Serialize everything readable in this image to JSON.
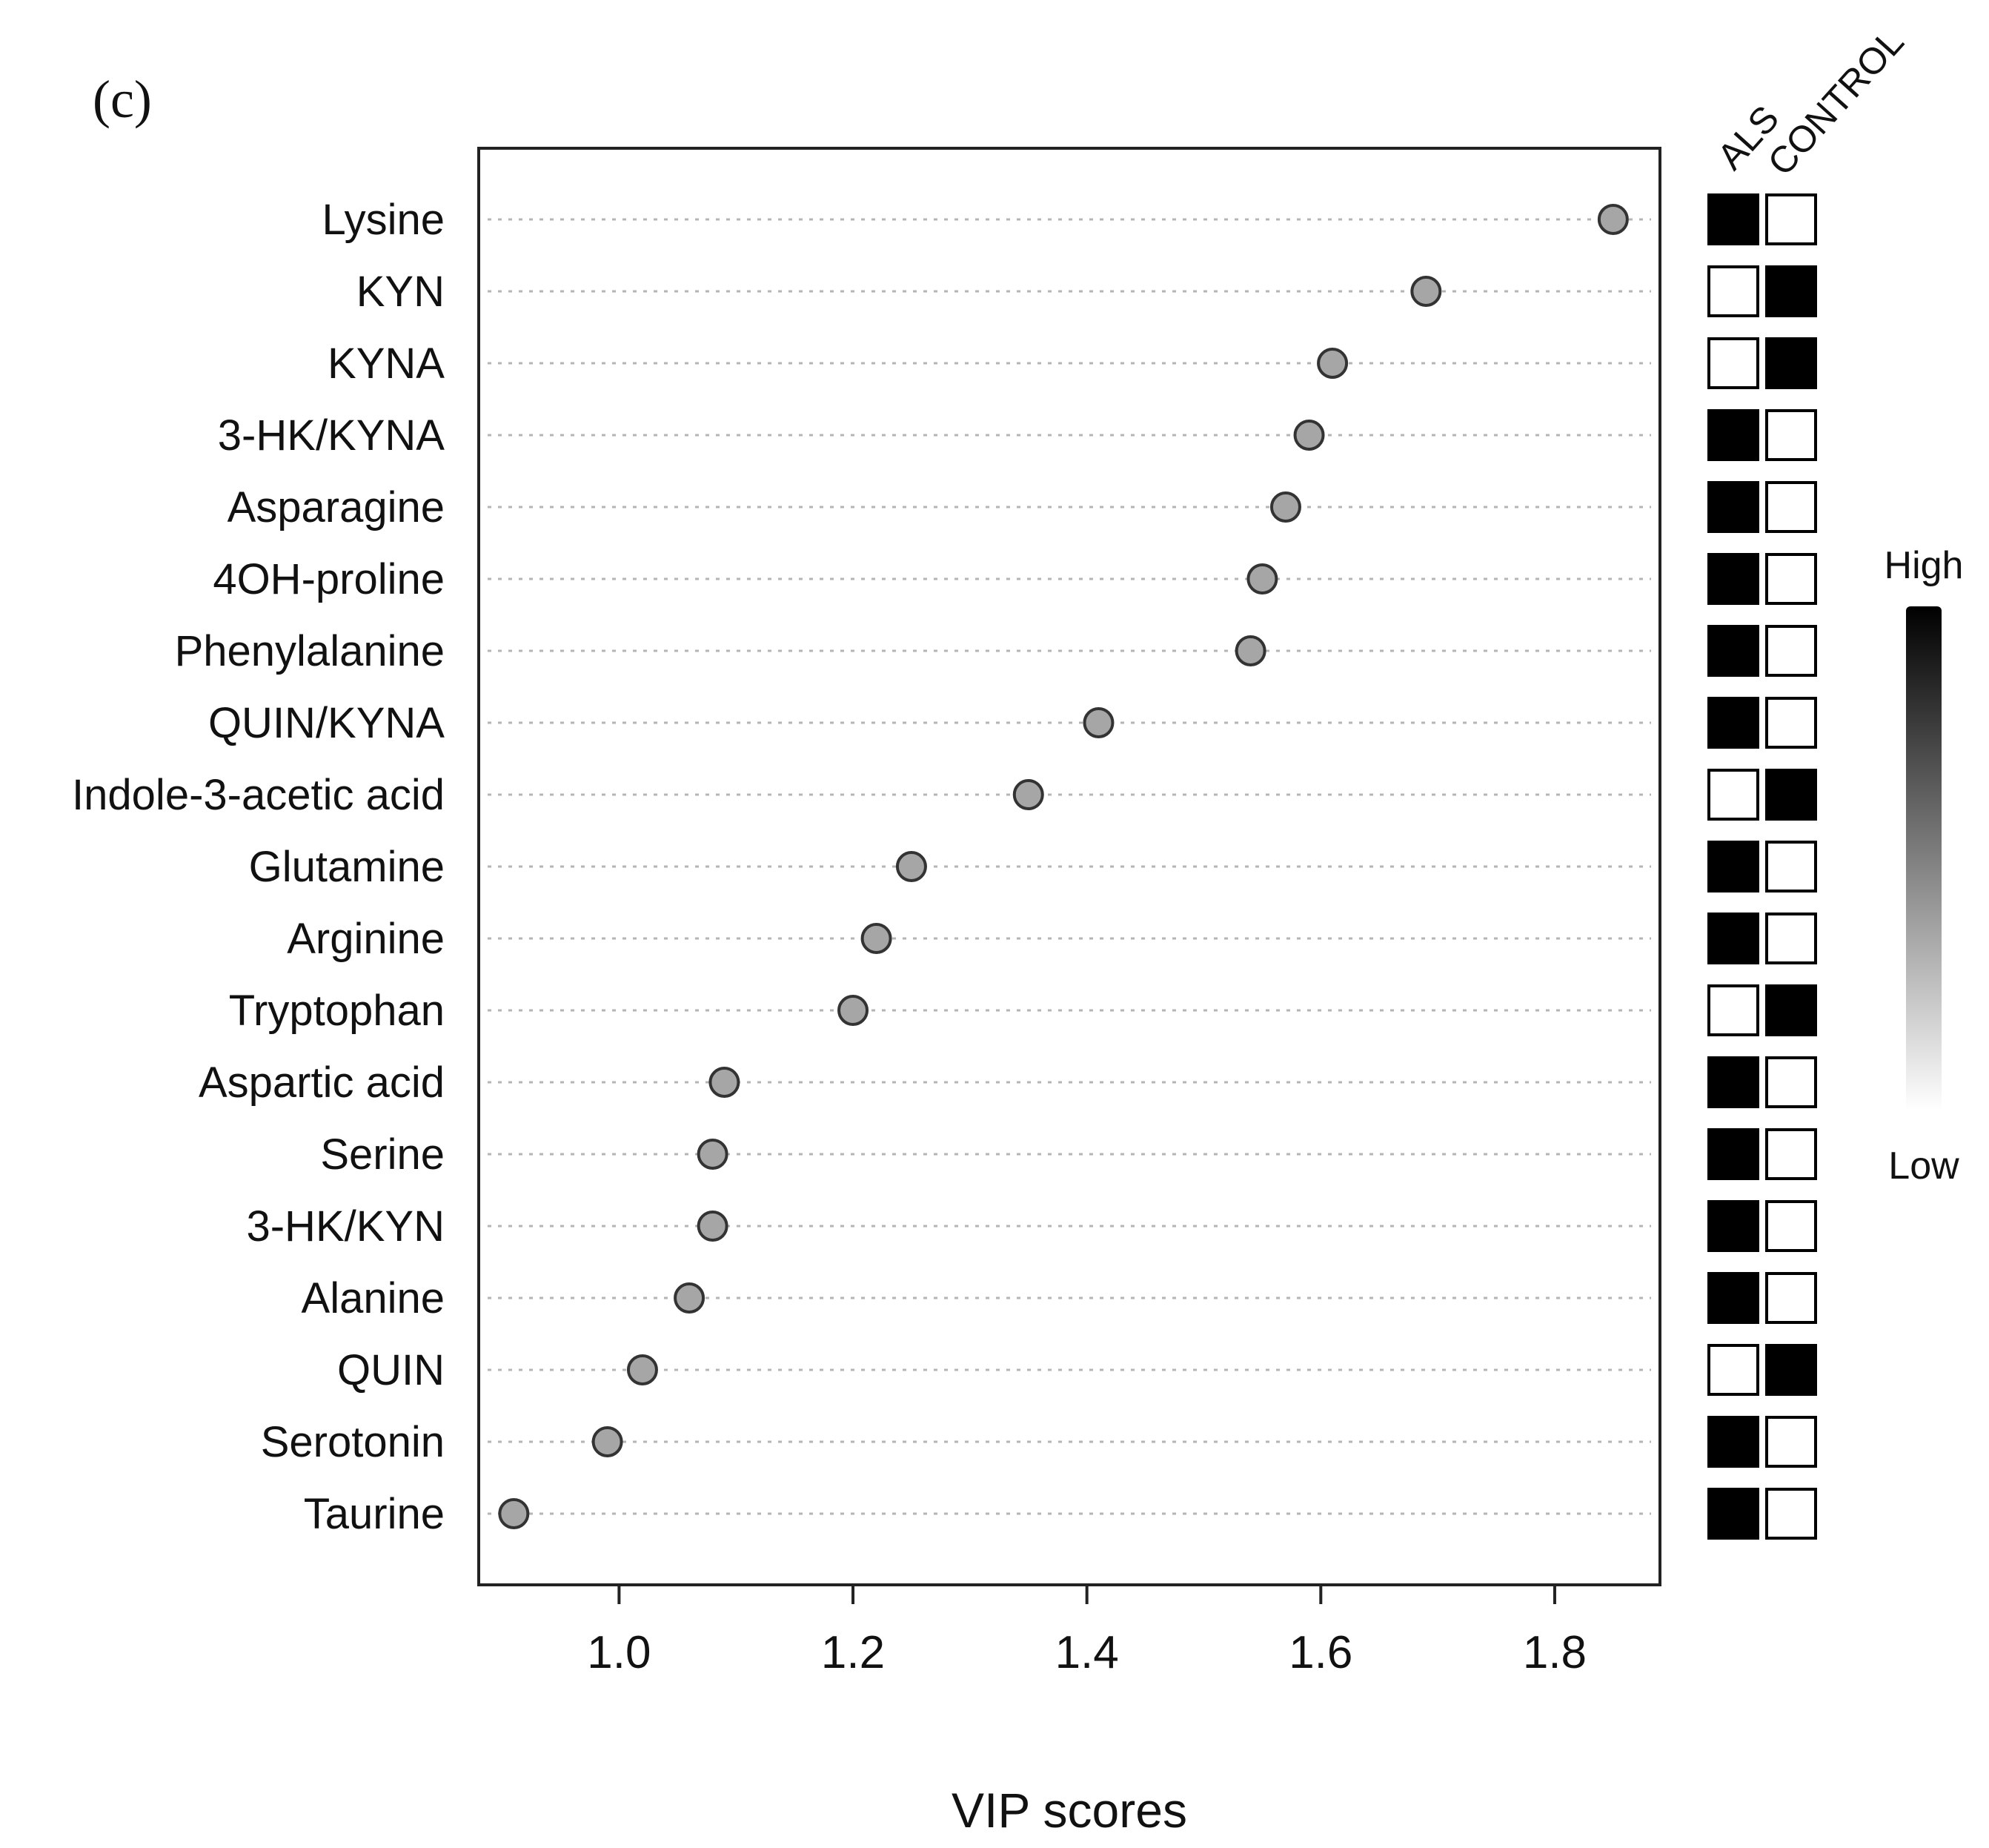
{
  "chart_data": {
    "type": "scatter",
    "panel_label": "(c)",
    "xlabel": "VIP scores",
    "ylabel": "",
    "xlim": [
      0.88,
      1.89
    ],
    "x_ticks": [
      1.0,
      1.2,
      1.4,
      1.6,
      1.8
    ],
    "x_tick_labels": [
      "1.0",
      "1.2",
      "1.4",
      "1.6",
      "1.8"
    ],
    "grid": "horizontal dotted",
    "categories": [
      "Lysine",
      "KYN",
      "KYNA",
      "3-HK/KYNA",
      "Asparagine",
      "4OH-proline",
      "Phenylalanine",
      "QUIN/KYNA",
      "Indole-3-acetic acid",
      "Glutamine",
      "Arginine",
      "Tryptophan",
      "Aspartic acid",
      "Serine",
      "3-HK/KYN",
      "Alanine",
      "QUIN",
      "Serotonin",
      "Taurine"
    ],
    "values": [
      1.85,
      1.69,
      1.61,
      1.59,
      1.57,
      1.55,
      1.54,
      1.41,
      1.35,
      1.25,
      1.22,
      1.2,
      1.09,
      1.08,
      1.08,
      1.06,
      1.02,
      0.99,
      0.91
    ],
    "heatmap": {
      "groups": [
        "ALS",
        "CONTROL"
      ],
      "levels_als_high": [
        1,
        0,
        0,
        1,
        1,
        1,
        1,
        1,
        0,
        1,
        1,
        0,
        1,
        1,
        1,
        1,
        0,
        1,
        1
      ],
      "scale_high_label": "High",
      "scale_low_label": "Low"
    },
    "colors": {
      "point": "#a6a6a6",
      "high": "#000000",
      "low": "#ffffff"
    }
  }
}
